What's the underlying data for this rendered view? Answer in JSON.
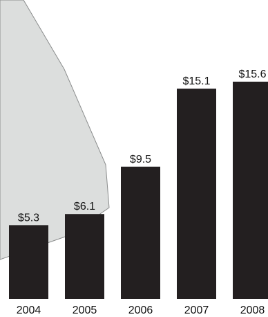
{
  "chart_data": {
    "type": "bar",
    "categories": [
      "2004",
      "2005",
      "2006",
      "2007",
      "2008"
    ],
    "values": [
      5.3,
      6.1,
      9.5,
      15.1,
      15.6
    ],
    "value_labels": [
      "$5.3",
      "$6.1",
      "$9.5",
      "$15.1",
      "$15.6"
    ],
    "ylim": [
      0,
      15.6
    ],
    "grid": false,
    "legend": "none",
    "colors": {
      "bar": "#231f20",
      "backdrop_fill": "#dcdedd",
      "backdrop_stroke": "#8a8c8c",
      "text": "#111111"
    }
  }
}
